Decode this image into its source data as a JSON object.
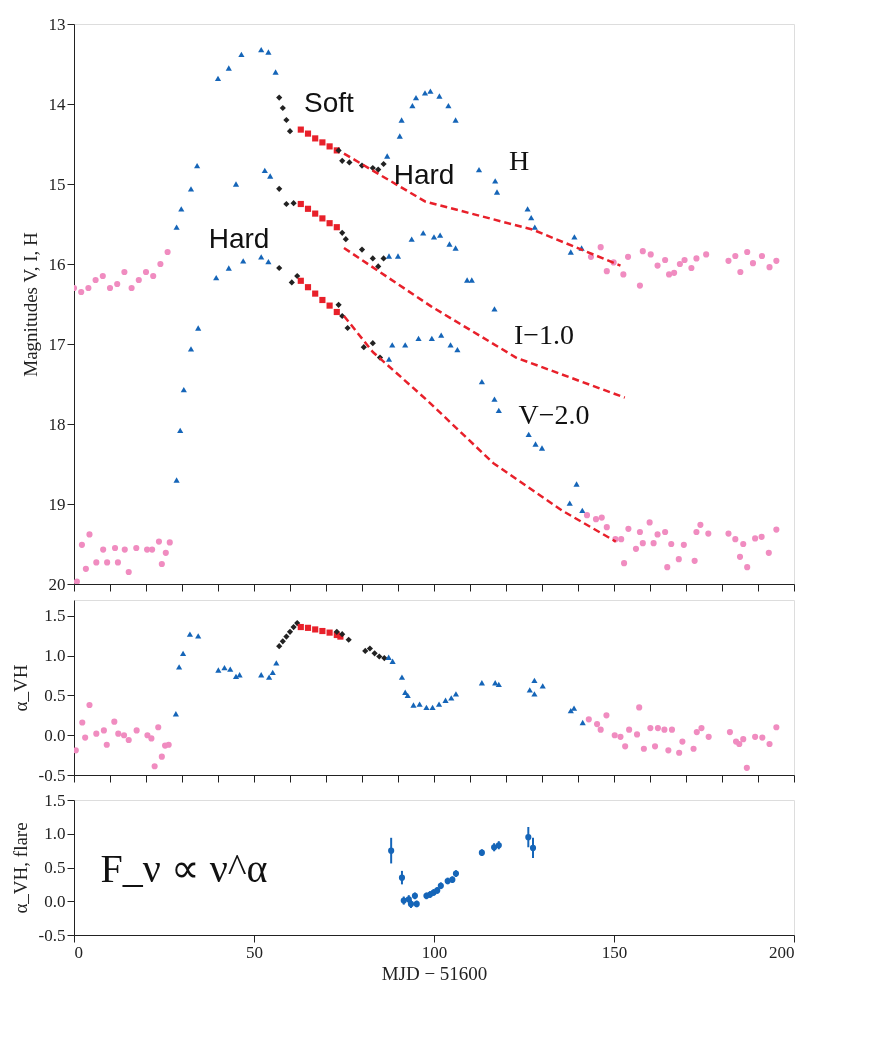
{
  "chart_data": [
    {
      "type": "scatter",
      "ylabel": "Magnitudes V, I, H",
      "xlim": [
        0,
        200
      ],
      "ylim": [
        20,
        13
      ],
      "yticks": [
        13,
        14,
        15,
        16,
        17,
        18,
        19,
        20
      ],
      "xticks": [
        {
          "value": 0,
          "label": null
        },
        {
          "value": 10,
          "label": null
        },
        {
          "value": 20,
          "label": null
        },
        {
          "value": 30,
          "label": null
        },
        {
          "value": 40,
          "label": null
        },
        {
          "value": 50,
          "label": null
        },
        {
          "value": 60,
          "label": null
        },
        {
          "value": 70,
          "label": null
        },
        {
          "value": 80,
          "label": null
        },
        {
          "value": 90,
          "label": null
        },
        {
          "value": 100,
          "label": null
        },
        {
          "value": 110,
          "label": null
        },
        {
          "value": 120,
          "label": null
        },
        {
          "value": 130,
          "label": null
        },
        {
          "value": 140,
          "label": null
        },
        {
          "value": 150,
          "label": null
        },
        {
          "value": 160,
          "label": null
        },
        {
          "value": 170,
          "label": null
        },
        {
          "value": 180,
          "label": null
        },
        {
          "value": 190,
          "label": null
        },
        {
          "value": 200,
          "label": null
        }
      ],
      "tick_labels": "y",
      "series": [
        {
          "type": "scatter",
          "marker": "circle",
          "color": "#f08cc0",
          "x": [
            0,
            2,
            4,
            6,
            8,
            10,
            12,
            14,
            16,
            18,
            20,
            22,
            24,
            26
          ],
          "values": [
            16.3,
            16.35,
            16.3,
            16.2,
            16.15,
            16.3,
            16.25,
            16.1,
            16.3,
            16.2,
            16.1,
            16.15,
            16.0,
            15.85
          ]
        },
        {
          "type": "scatter",
          "marker": "circle",
          "color": "#f08cc0",
          "x": [
            0.8,
            2.2,
            3.3,
            4.3,
            6.2,
            8.1,
            9.2,
            11.4,
            12.2,
            14.1,
            15.2,
            17.3,
            20.3,
            21.7,
            23.6,
            24.4,
            25.5,
            26.6
          ],
          "values": [
            19.97,
            19.51,
            19.81,
            19.38,
            19.73,
            19.57,
            19.73,
            19.55,
            19.73,
            19.57,
            19.85,
            19.55,
            19.57,
            19.57,
            19.47,
            19.75,
            19.61,
            19.48
          ]
        },
        {
          "type": "scatter",
          "marker": "triangle",
          "color": "#1565b8",
          "x": [
            40,
            43,
            46.5,
            52,
            54,
            56
          ],
          "values": [
            13.68,
            13.55,
            13.38,
            13.32,
            13.35,
            13.6
          ]
        },
        {
          "type": "scatter",
          "marker": "triangle",
          "color": "#1565b8",
          "x": [
            28.5,
            29.8,
            32.5,
            34.2,
            45,
            53,
            54.5
          ],
          "values": [
            15.54,
            15.31,
            15.06,
            14.77,
            15.0,
            14.83,
            14.9
          ]
        },
        {
          "type": "scatter",
          "marker": "triangle",
          "color": "#1565b8",
          "x": [
            28.5,
            29.5,
            30.5,
            32.5,
            34.5,
            39.5,
            43,
            47,
            52,
            54
          ],
          "values": [
            18.7,
            18.08,
            17.57,
            17.06,
            16.8,
            16.17,
            16.05,
            15.96,
            15.91,
            15.97
          ]
        },
        {
          "type": "scatter",
          "marker": "diamond",
          "color": "#222222",
          "x": [
            57,
            58,
            59,
            60,
            57,
            59,
            61,
            57,
            60.5,
            62
          ],
          "values": [
            13.92,
            14.05,
            14.2,
            14.34,
            15.06,
            15.25,
            15.24,
            16.05,
            16.23,
            16.15
          ]
        },
        {
          "type": "scatter",
          "marker": "square",
          "color": "#e8202a",
          "x": [
            63,
            65,
            67,
            69,
            71,
            73,
            63,
            65,
            67,
            69,
            71,
            73,
            63,
            65,
            67,
            69,
            71,
            73
          ],
          "values": [
            14.32,
            14.37,
            14.43,
            14.48,
            14.53,
            14.58,
            15.25,
            15.31,
            15.37,
            15.43,
            15.49,
            15.54,
            16.21,
            16.29,
            16.37,
            16.45,
            16.52,
            16.6
          ]
        },
        {
          "type": "scatter",
          "marker": "diamond",
          "color": "#222222",
          "x": [
            73.5,
            74.5,
            76.5,
            80,
            83,
            84.5,
            86,
            74.5,
            75.5,
            80,
            83,
            84.5,
            86,
            73.5,
            74.5,
            76,
            80.5,
            83,
            85
          ],
          "values": [
            14.58,
            14.71,
            14.73,
            14.77,
            14.8,
            14.82,
            14.75,
            15.61,
            15.69,
            15.82,
            15.93,
            16.03,
            15.93,
            16.51,
            16.65,
            16.8,
            17.04,
            16.99,
            17.17
          ]
        },
        {
          "type": "scatter",
          "marker": "triangle",
          "color": "#1565b8",
          "x": [
            87,
            90.5,
            91,
            94,
            95,
            97.5,
            99,
            101.5,
            104,
            106,
            112.5,
            117,
            117.5,
            126,
            127,
            128,
            139,
            138,
            141
          ],
          "values": [
            14.65,
            14.4,
            14.2,
            14.02,
            13.92,
            13.86,
            13.84,
            13.9,
            14.02,
            14.2,
            14.82,
            14.96,
            15.1,
            15.31,
            15.42,
            15.54,
            15.66,
            15.85,
            15.8
          ]
        },
        {
          "type": "scatter",
          "marker": "triangle",
          "color": "#1565b8",
          "x": [
            87.5,
            90,
            93.8,
            97,
            100,
            101.7,
            104.3,
            106,
            109.2,
            110.5,
            116.8
          ],
          "values": [
            15.9,
            15.9,
            15.69,
            15.61,
            15.66,
            15.64,
            15.75,
            15.8,
            16.2,
            16.2,
            16.56
          ]
        },
        {
          "type": "scatter",
          "marker": "triangle",
          "color": "#1565b8",
          "x": [
            87.5,
            88.4,
            92,
            95.7,
            99.4,
            102,
            104.6,
            106.5,
            113.3,
            116.8,
            118,
            126.3,
            128.2,
            130,
            139.6,
            137.7,
            141.2
          ],
          "values": [
            17.19,
            17.01,
            17.01,
            16.93,
            16.93,
            16.89,
            17.01,
            17.07,
            17.47,
            17.69,
            17.83,
            18.13,
            18.25,
            18.3,
            18.75,
            18.99,
            19.08
          ]
        },
        {
          "type": "scatter",
          "marker": "circle",
          "color": "#f08cc0",
          "x": [
            143.6,
            146.3,
            148,
            149.9,
            152.6,
            153.9,
            157.2,
            158,
            160.2,
            162.1,
            164.2,
            165.3,
            166.7,
            168.3,
            169.6,
            171.5,
            172.9,
            175.6,
            181.8,
            183.7,
            185.1,
            187,
            188.6,
            191.1,
            193.2,
            195.1
          ],
          "values": [
            15.91,
            15.79,
            16.09,
            15.98,
            16.13,
            15.91,
            16.27,
            15.84,
            15.88,
            16.02,
            15.95,
            16.13,
            16.11,
            16.0,
            15.95,
            16.05,
            15.93,
            15.88,
            15.96,
            15.9,
            16.1,
            15.85,
            15.99,
            15.9,
            16.04,
            15.96
          ]
        },
        {
          "type": "scatter",
          "marker": "circle",
          "color": "#f08cc0",
          "x": [
            142.5,
            145,
            146.6,
            148,
            150.4,
            152,
            152.8,
            154,
            156.1,
            157.2,
            158,
            159.9,
            161,
            162.1,
            164.2,
            164.8,
            165.9,
            168,
            169.4,
            172.4,
            172.9,
            174,
            176.2,
            181.8,
            183.7,
            185,
            185.9,
            187,
            189.2,
            191,
            193,
            195.1
          ],
          "values": [
            19.14,
            19.19,
            19.17,
            19.29,
            19.44,
            19.44,
            19.74,
            19.31,
            19.56,
            19.35,
            19.49,
            19.23,
            19.49,
            19.38,
            19.35,
            19.79,
            19.5,
            19.69,
            19.51,
            19.71,
            19.35,
            19.26,
            19.37,
            19.37,
            19.44,
            19.66,
            19.5,
            19.79,
            19.43,
            19.41,
            19.61,
            19.32
          ]
        },
        {
          "type": "line",
          "line_style": "dashed",
          "color": "#e8202a",
          "x": [
            75,
            97.6,
            127.4,
            151.8
          ],
          "values": [
            14.62,
            15.22,
            15.57,
            16.02
          ]
        },
        {
          "type": "line",
          "line_style": "dashed",
          "color": "#e8202a",
          "x": [
            75,
            99.2,
            122.8,
            153
          ],
          "values": [
            15.8,
            16.53,
            17.17,
            17.67
          ]
        },
        {
          "type": "line",
          "line_style": "dashed",
          "color": "#e8202a",
          "x": [
            75,
            83,
            98,
            116.5,
            135.5,
            150.5
          ],
          "values": [
            16.65,
            17.1,
            17.7,
            18.49,
            19.08,
            19.47
          ]
        }
      ],
      "annotations": [
        "Soft",
        "Hard",
        "Hard",
        "H",
        "I−1.0",
        "V−2.0"
      ]
    },
    {
      "type": "scatter",
      "ylabel": "α_VH",
      "xlim": [
        0,
        200
      ],
      "ylim": [
        -0.5,
        1.7
      ],
      "yticks": [
        {
          "value": -0.5,
          "label": "-0.5"
        },
        {
          "value": 0,
          "label": "0.0"
        },
        {
          "value": 0.5,
          "label": "0.5"
        },
        {
          "value": 1,
          "label": "1.0"
        },
        {
          "value": 1.5,
          "label": "1.5"
        }
      ],
      "xticks": [
        {
          "value": 0,
          "label": null
        },
        {
          "value": 10,
          "label": null
        },
        {
          "value": 20,
          "label": null
        },
        {
          "value": 30,
          "label": null
        },
        {
          "value": 40,
          "label": null
        },
        {
          "value": 50,
          "label": null
        },
        {
          "value": 60,
          "label": null
        },
        {
          "value": 70,
          "label": null
        },
        {
          "value": 80,
          "label": null
        },
        {
          "value": 90,
          "label": null
        },
        {
          "value": 100,
          "label": null
        },
        {
          "value": 110,
          "label": null
        },
        {
          "value": 120,
          "label": null
        },
        {
          "value": 130,
          "label": null
        },
        {
          "value": 140,
          "label": null
        },
        {
          "value": 150,
          "label": null
        },
        {
          "value": 160,
          "label": null
        },
        {
          "value": 170,
          "label": null
        },
        {
          "value": 180,
          "label": null
        },
        {
          "value": 190,
          "label": null
        },
        {
          "value": 200,
          "label": null
        }
      ],
      "tick_labels": "y",
      "series": [
        {
          "type": "scatter",
          "marker": "circle",
          "color": "#f08cc0",
          "x": [
            0.5,
            2.3,
            3.1,
            4.3,
            6.2,
            8.3,
            9.1,
            11.2,
            12.3,
            13.9,
            15.2,
            17.4,
            20.4,
            21.5,
            22.4,
            23.4,
            24.4,
            25.3,
            26.3
          ],
          "values": [
            -0.19,
            0.16,
            -0.03,
            0.38,
            0.02,
            0.06,
            -0.12,
            0.17,
            0.02,
            0.0,
            -0.06,
            0.06,
            0.0,
            -0.04,
            -0.39,
            0.1,
            -0.27,
            -0.13,
            -0.12
          ]
        },
        {
          "type": "scatter",
          "marker": "triangle",
          "color": "#1565b8",
          "x": [
            28.3,
            29.2,
            30.3,
            32.2,
            34.5,
            40.1,
            41.8,
            43.4,
            45,
            46,
            52,
            54.2,
            55.2,
            56.2
          ],
          "values": [
            0.27,
            0.86,
            1.03,
            1.27,
            1.25,
            0.82,
            0.85,
            0.83,
            0.74,
            0.76,
            0.76,
            0.73,
            0.79,
            0.91
          ]
        },
        {
          "type": "scatter",
          "marker": "diamond",
          "color": "#222222",
          "x": [
            57,
            58,
            59,
            60,
            61,
            62
          ],
          "values": [
            1.12,
            1.18,
            1.24,
            1.3,
            1.36,
            1.41
          ]
        },
        {
          "type": "scatter",
          "marker": "square",
          "color": "#e8202a",
          "x": [
            63,
            65,
            67,
            69,
            71,
            73,
            74
          ],
          "values": [
            1.36,
            1.35,
            1.33,
            1.31,
            1.29,
            1.26,
            1.24
          ]
        },
        {
          "type": "scatter",
          "marker": "diamond",
          "color": "#222222",
          "x": [
            73,
            74.5,
            76.3,
            80.9,
            82.2,
            83.5,
            84.8,
            86.2
          ],
          "values": [
            1.3,
            1.27,
            1.2,
            1.06,
            1.09,
            1.03,
            0.99,
            0.97
          ]
        },
        {
          "type": "scatter",
          "marker": "triangle",
          "color": "#1565b8",
          "x": [
            87.4,
            88.5,
            91.1,
            92,
            92.7,
            94.3,
            96,
            97.9,
            99.6,
            101.4,
            103.2,
            104.8,
            106.1,
            113.3,
            117,
            118,
            126.6,
            127.9,
            127.9,
            130.2,
            138,
            138.9,
            141.3
          ],
          "values": [
            0.98,
            0.93,
            0.73,
            0.54,
            0.5,
            0.38,
            0.39,
            0.35,
            0.35,
            0.39,
            0.44,
            0.47,
            0.52,
            0.66,
            0.66,
            0.64,
            0.57,
            0.69,
            0.52,
            0.62,
            0.31,
            0.34,
            0.16
          ]
        },
        {
          "type": "scatter",
          "marker": "circle",
          "color": "#f08cc0",
          "x": [
            143,
            145.3,
            146.3,
            147.9,
            150.2,
            151.8,
            153.1,
            154.2,
            156.4,
            157,
            158.3,
            160.1,
            161.4,
            162.2,
            164,
            165.1,
            166.1,
            168.1,
            169,
            172.1,
            173,
            174.3,
            176.3,
            182.2,
            183.9,
            184.8,
            185.9,
            186.9,
            189.2,
            191.2,
            193.2,
            195.1
          ],
          "values": [
            0.2,
            0.14,
            0.07,
            0.25,
            0.0,
            -0.02,
            -0.14,
            0.07,
            0.01,
            0.35,
            -0.17,
            0.09,
            -0.14,
            0.09,
            0.07,
            -0.19,
            0.07,
            -0.22,
            -0.08,
            -0.17,
            0.04,
            0.09,
            -0.02,
            0.04,
            -0.08,
            -0.11,
            -0.05,
            -0.41,
            -0.02,
            -0.03,
            -0.11,
            0.1
          ]
        }
      ]
    },
    {
      "type": "scatter",
      "ylabel": "α_VH, flare",
      "xlabel": "MJD − 51600",
      "xlim": [
        0,
        200
      ],
      "ylim": [
        -0.5,
        1.5
      ],
      "yticks": [
        {
          "value": -0.5,
          "label": "-0.5"
        },
        {
          "value": 0,
          "label": "0.0"
        },
        {
          "value": 0.5,
          "label": "0.5"
        },
        {
          "value": 1,
          "label": "1.0"
        },
        {
          "value": 1.5,
          "label": "1.5"
        }
      ],
      "xticks": [
        0,
        50,
        100,
        150,
        200
      ],
      "series": [
        {
          "type": "scatter",
          "marker": "circle",
          "color": "#1565b8",
          "x": [
            88.1,
            91.1,
            91.6,
            93,
            93.6,
            94.7,
            95.2,
            97.9,
            98.9,
            99.9,
            100.9,
            101.9,
            103.8,
            105.1,
            106.1,
            113.3,
            116.7,
            118,
            126.2,
            127.5
          ],
          "values": [
            0.75,
            0.35,
            0.01,
            0.03,
            -0.04,
            0.08,
            -0.04,
            0.08,
            0.1,
            0.13,
            0.16,
            0.23,
            0.3,
            0.32,
            0.41,
            0.72,
            0.8,
            0.83,
            0.95,
            0.79
          ],
          "errors": [
            0.19,
            0.1,
            0.06,
            0.06,
            0.06,
            0.05,
            0.05,
            0.05,
            0.05,
            0.05,
            0.05,
            0.05,
            0.05,
            0.05,
            0.05,
            0.05,
            0.06,
            0.06,
            0.15,
            0.15
          ]
        }
      ],
      "annotations": [
        "F_ν ∝ ν^α"
      ]
    }
  ]
}
